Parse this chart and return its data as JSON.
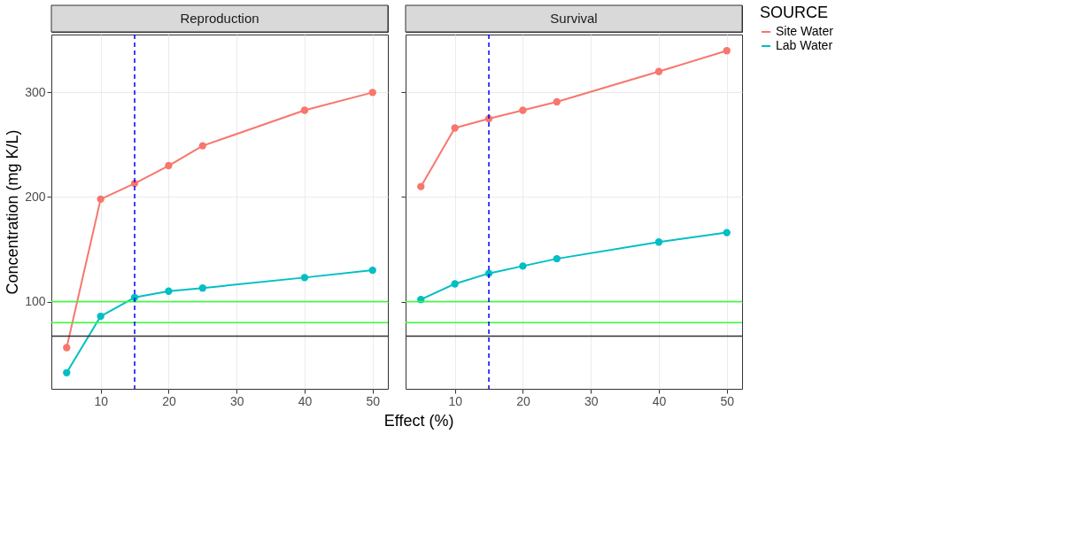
{
  "chart_data": [
    {
      "type": "line",
      "title": "Reproduction",
      "xlabel": "Effect (%)",
      "ylabel": "Concentration (mg K/L)",
      "legend_title": "SOURCE",
      "legend": "right",
      "grid": true,
      "marker": "circle",
      "line_style": "solid",
      "x": [
        5,
        10,
        15,
        20,
        25,
        40,
        50
      ],
      "series": [
        {
          "name": "Site Water",
          "color": "#f8766d",
          "values": [
            56,
            198,
            213,
            230,
            249,
            283,
            300
          ]
        },
        {
          "name": "Lab Water",
          "color": "#00bfc4",
          "values": [
            32,
            86,
            104,
            110,
            113,
            123,
            130
          ]
        }
      ],
      "xlim": [
        2.75,
        52.25
      ],
      "ylim": [
        16.6,
        355.4
      ],
      "xticks": [
        10,
        20,
        30,
        40,
        50
      ],
      "yticks": [
        100,
        200,
        300
      ],
      "ref_lines": [
        {
          "axis": "y",
          "value": 100,
          "color": "#33ff33",
          "line_style": "solid"
        },
        {
          "axis": "y",
          "value": 80,
          "color": "#33ff33",
          "line_style": "solid"
        },
        {
          "axis": "y",
          "value": 67,
          "color": "#333333",
          "line_style": "solid"
        },
        {
          "axis": "x",
          "value": 15,
          "color": "#0000ff",
          "line_style": "dashed"
        }
      ]
    },
    {
      "type": "line",
      "title": "Survival",
      "grid": true,
      "marker": "circle",
      "line_style": "solid",
      "tick_labels": "x",
      "x": [
        5,
        10,
        15,
        20,
        25,
        40,
        50
      ],
      "series": [
        {
          "name": "Site Water",
          "color": "#f8766d",
          "values": [
            210,
            266,
            275,
            283,
            291,
            320,
            340
          ]
        },
        {
          "name": "Lab Water",
          "color": "#00bfc4",
          "values": [
            102,
            117,
            127,
            134,
            141,
            157,
            166
          ]
        }
      ],
      "xlim": [
        2.75,
        52.25
      ],
      "ylim": [
        16.6,
        355.4
      ],
      "xticks": [
        10,
        20,
        30,
        40,
        50
      ],
      "yticks": [
        100,
        200,
        300
      ],
      "ref_lines": [
        {
          "axis": "y",
          "value": 100,
          "color": "#33ff33",
          "line_style": "solid"
        },
        {
          "axis": "y",
          "value": 80,
          "color": "#33ff33",
          "line_style": "solid"
        },
        {
          "axis": "y",
          "value": 67,
          "color": "#333333",
          "line_style": "solid"
        },
        {
          "axis": "x",
          "value": 15,
          "color": "#0000ff",
          "line_style": "dashed"
        }
      ]
    }
  ]
}
